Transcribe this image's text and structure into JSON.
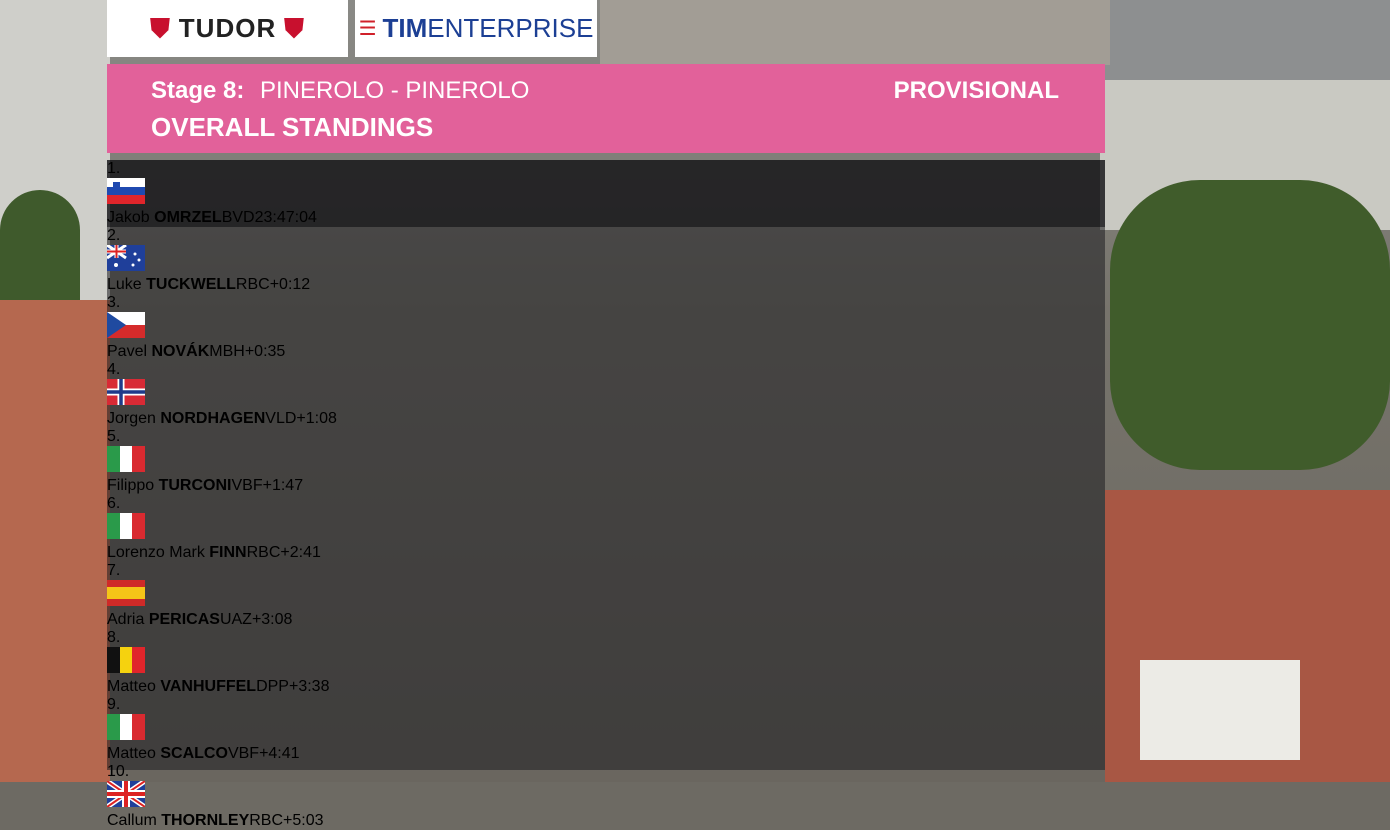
{
  "sponsors": {
    "tudor": "TUDOR",
    "tim": {
      "bold": "TIM",
      "rest": "ENTERPRISE"
    }
  },
  "header": {
    "stage": "Stage 8:",
    "route": "PINEROLO - PINEROLO",
    "status": "PROVISIONAL",
    "title": "OVERALL STANDINGS"
  },
  "rows": [
    {
      "rank": "1.",
      "first": "Jakob",
      "last": "OMRZEL",
      "team": "BVD",
      "time": "23:47:04"
    },
    {
      "rank": "2.",
      "first": "Luke",
      "last": "TUCKWELL",
      "team": "RBC",
      "time": "+0:12"
    },
    {
      "rank": "3.",
      "first": "Pavel",
      "last": "NOVÁK",
      "team": "MBH",
      "time": "+0:35"
    },
    {
      "rank": "4.",
      "first": "Jorgen",
      "last": "NORDHAGEN",
      "team": "VLD",
      "time": "+1:08"
    },
    {
      "rank": "5.",
      "first": "Filippo",
      "last": "TURCONI",
      "team": "VBF",
      "time": "+1:47"
    },
    {
      "rank": "6.",
      "first": "Lorenzo Mark",
      "last": "FINN",
      "team": "RBC",
      "time": "+2:41"
    },
    {
      "rank": "7.",
      "first": "Adria",
      "last": "PERICAS",
      "team": "UAZ",
      "time": "+3:08"
    },
    {
      "rank": "8.",
      "first": "Matteo",
      "last": "VANHUFFEL",
      "team": "DPP",
      "time": "+3:38"
    },
    {
      "rank": "9.",
      "first": "Matteo",
      "last": "SCALCO",
      "team": "VBF",
      "time": "+4:41"
    },
    {
      "rank": "10.",
      "first": "Callum",
      "last": "THORNLEY",
      "team": "RBC",
      "time": "+5:03"
    }
  ]
}
